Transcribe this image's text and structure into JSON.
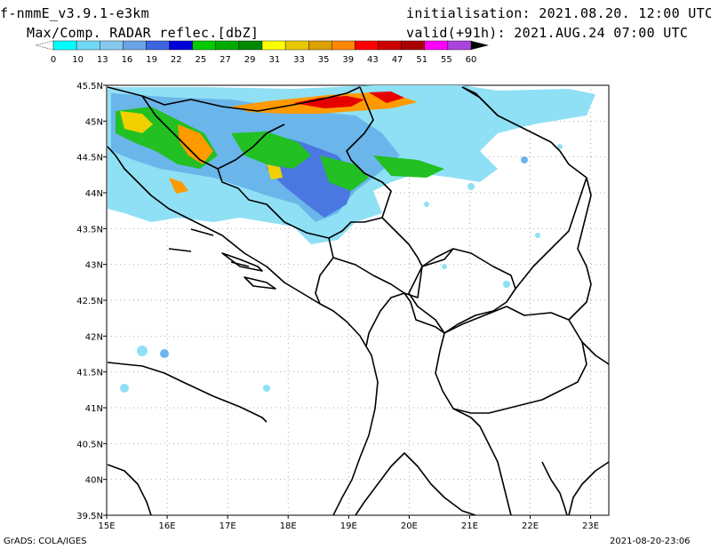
{
  "header": {
    "model": "f-nmmE_v3.9.1-e3km",
    "field": "Max/Comp. RADAR reflec.[dbZ]",
    "initialisation": "initialisation: 2021.08.20. 12:00 UTC",
    "valid": "valid(+91h): 2021.AUG.24 07:00 UTC"
  },
  "colorbar": {
    "labels": [
      "0",
      "10",
      "13",
      "16",
      "19",
      "22",
      "25",
      "27",
      "29",
      "31",
      "33",
      "35",
      "39",
      "43",
      "47",
      "51",
      "55",
      "60"
    ],
    "colors": [
      "#00ffff",
      "#6fd9f5",
      "#87c8ee",
      "#6aa4e6",
      "#3c66e0",
      "#0000d8",
      "#00cc00",
      "#00aa00",
      "#008800",
      "#ffff00",
      "#e6c800",
      "#dca000",
      "#ff8800",
      "#ff0000",
      "#cc0000",
      "#aa0000",
      "#ff00ff",
      "#aa44dd"
    ]
  },
  "map": {
    "lat_labels": [
      "45.5N",
      "45N",
      "44.5N",
      "44N",
      "43.5N",
      "43N",
      "42.5N",
      "42N",
      "41.5N",
      "41N",
      "40.5N",
      "40N",
      "39.5N"
    ],
    "lon_labels": [
      "15E",
      "16E",
      "17E",
      "18E",
      "19E",
      "20E",
      "21E",
      "22E",
      "23E"
    ],
    "lat_range": [
      39.5,
      45.5
    ],
    "lon_range": [
      15,
      23.3
    ],
    "grid": "dotted",
    "precip_region": "northern Adriatic / Croatia / Bosnia"
  },
  "footer": {
    "left": "GrADS: COLA/IGES",
    "right": "2021-08-20-23:06"
  }
}
